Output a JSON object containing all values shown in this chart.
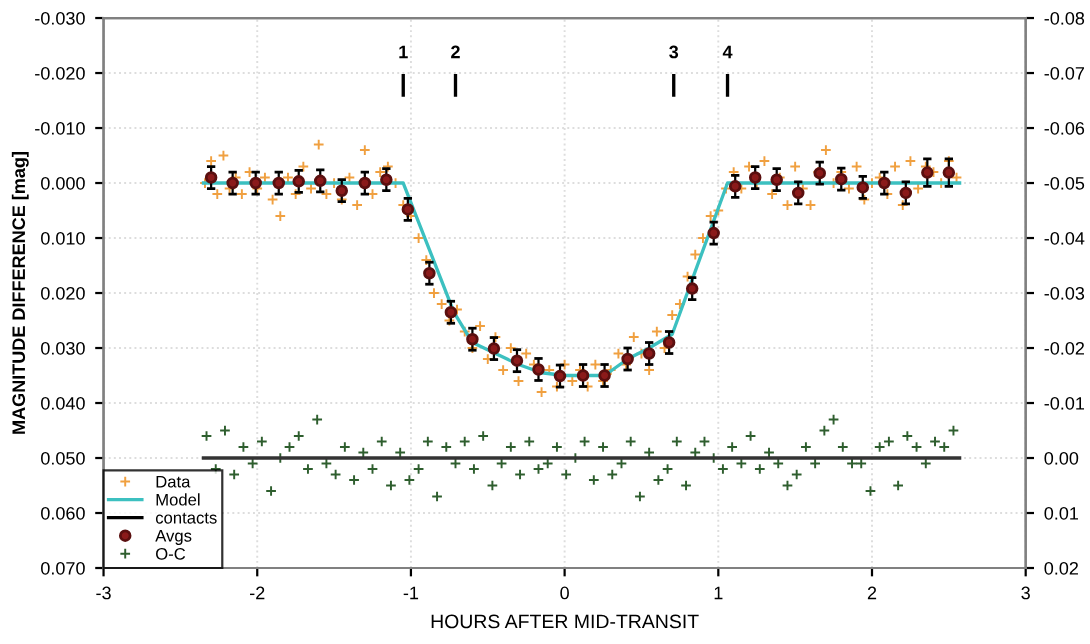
{
  "chart_data": {
    "type": "scatter",
    "xlabel": "HOURS AFTER MID-TRANSIT",
    "ylabel": "MAGNITUDE DIFFERENCE [mag]",
    "xlim": [
      -3,
      3
    ],
    "xticks": [
      -3,
      -2,
      -1,
      0,
      1,
      2,
      3
    ],
    "ylim": [
      0.07,
      -0.03
    ],
    "yticks": [
      {
        "value": -0.03,
        "label": "-0.030"
      },
      {
        "value": -0.02,
        "label": "-0.020"
      },
      {
        "value": -0.01,
        "label": "-0.010"
      },
      {
        "value": 0.0,
        "label": "0.000"
      },
      {
        "value": 0.01,
        "label": "0.010"
      },
      {
        "value": 0.02,
        "label": "0.020"
      },
      {
        "value": 0.03,
        "label": "0.030"
      },
      {
        "value": 0.04,
        "label": "0.040"
      },
      {
        "value": 0.05,
        "label": "0.050"
      },
      {
        "value": 0.06,
        "label": "0.060"
      },
      {
        "value": 0.07,
        "label": "0.070"
      }
    ],
    "y2lim": [
      0.02,
      -0.08
    ],
    "y2ticks": [
      {
        "value": -0.08,
        "label": "-0.08"
      },
      {
        "value": -0.07,
        "label": "-0.07"
      },
      {
        "value": -0.06,
        "label": "-0.06"
      },
      {
        "value": -0.05,
        "label": "-0.05"
      },
      {
        "value": -0.04,
        "label": "-0.04"
      },
      {
        "value": -0.03,
        "label": "-0.03"
      },
      {
        "value": -0.02,
        "label": "-0.02"
      },
      {
        "value": -0.01,
        "label": "-0.01"
      },
      {
        "value": 0.0,
        "label": "0.00"
      },
      {
        "value": 0.01,
        "label": "0.01"
      },
      {
        "value": 0.02,
        "label": "0.02"
      }
    ],
    "grid": true,
    "legend": "bottom left",
    "annotations": [
      "1",
      "2",
      "3",
      "4"
    ],
    "series": [
      {
        "name": "Data",
        "marker": "cross",
        "color": "#f0a040",
        "x": [
          -2.34,
          -2.3,
          -2.26,
          -2.22,
          -2.18,
          -2.14,
          -2.1,
          -2.05,
          -2.0,
          -1.95,
          -1.9,
          -1.85,
          -1.8,
          -1.75,
          -1.7,
          -1.65,
          -1.6,
          -1.55,
          -1.5,
          -1.45,
          -1.4,
          -1.35,
          -1.3,
          -1.25,
          -1.2,
          -1.15,
          -1.1,
          -1.05,
          -1.0,
          -0.95,
          -0.9,
          -0.85,
          -0.8,
          -0.75,
          -0.7,
          -0.65,
          -0.6,
          -0.55,
          -0.5,
          -0.45,
          -0.4,
          -0.35,
          -0.3,
          -0.25,
          -0.2,
          -0.15,
          -0.1,
          -0.05,
          0.0,
          0.05,
          0.1,
          0.15,
          0.2,
          0.25,
          0.3,
          0.35,
          0.4,
          0.45,
          0.5,
          0.55,
          0.6,
          0.65,
          0.7,
          0.75,
          0.8,
          0.85,
          0.9,
          0.95,
          1.0,
          1.05,
          1.1,
          1.15,
          1.2,
          1.25,
          1.3,
          1.35,
          1.4,
          1.45,
          1.5,
          1.55,
          1.6,
          1.65,
          1.7,
          1.75,
          1.8,
          1.85,
          1.9,
          1.95,
          2.0,
          2.05,
          2.1,
          2.15,
          2.2,
          2.25,
          2.3,
          2.35,
          2.4,
          2.45,
          2.5,
          2.55
        ],
        "values": [
          0.0,
          -0.004,
          0.002,
          -0.005,
          0.001,
          -0.001,
          0.002,
          -0.002,
          0.001,
          -0.001,
          0.003,
          0.006,
          -0.001,
          0.002,
          -0.003,
          0.001,
          -0.007,
          0.002,
          0.0,
          0.003,
          -0.001,
          0.004,
          -0.006,
          0.002,
          -0.002,
          -0.003,
          0.0,
          0.004,
          0.006,
          0.01,
          0.014,
          0.02,
          0.022,
          0.025,
          0.023,
          0.027,
          0.03,
          0.026,
          0.032,
          0.028,
          0.034,
          0.03,
          0.036,
          0.031,
          0.033,
          0.038,
          0.034,
          0.037,
          0.033,
          0.036,
          0.034,
          0.037,
          0.033,
          0.036,
          0.034,
          0.031,
          0.033,
          0.028,
          0.031,
          0.034,
          0.027,
          0.03,
          0.024,
          0.022,
          0.017,
          0.013,
          0.01,
          0.006,
          0.005,
          0.001,
          -0.002,
          0.001,
          -0.003,
          0.0,
          -0.004,
          0.002,
          -0.001,
          0.004,
          -0.003,
          0.001,
          0.004,
          -0.002,
          -0.006,
          0.0,
          -0.002,
          0.001,
          -0.003,
          0.003,
          0.0,
          -0.001,
          0.002,
          -0.003,
          0.004,
          -0.004,
          0.001,
          -0.003,
          -0.002,
          0.0,
          -0.004,
          -0.001
        ]
      },
      {
        "name": "Model",
        "type": "line",
        "marker": "none",
        "color": "#3cc0c0",
        "x": [
          -2.35,
          -1.05,
          -0.72,
          -0.6,
          -0.45,
          -0.3,
          -0.15,
          0.0,
          0.26,
          0.41,
          0.55,
          0.7,
          1.06,
          2.57
        ],
        "values": [
          0.0,
          0.0,
          0.0235,
          0.029,
          0.031,
          0.033,
          0.0345,
          0.035,
          0.035,
          0.032,
          0.03,
          0.0275,
          0.0,
          0.0
        ]
      },
      {
        "name": "contacts",
        "type": "line",
        "marker": "none",
        "color": "#000000",
        "x": [
          -1.05,
          -1.05,
          null,
          -0.71,
          -0.71,
          null,
          0.71,
          0.71,
          null,
          1.06,
          1.06
        ],
        "values": [
          -0.0195,
          -0.016,
          null,
          -0.0195,
          -0.016,
          null,
          -0.0195,
          -0.016,
          null,
          -0.0195,
          -0.016
        ]
      },
      {
        "name": "Avgs",
        "marker": "circle",
        "color": "#8b1a1a",
        "x": [
          -2.3,
          -2.16,
          -2.01,
          -1.86,
          -1.73,
          -1.59,
          -1.45,
          -1.3,
          -1.16,
          -1.02,
          -0.88,
          -0.74,
          -0.6,
          -0.46,
          -0.31,
          -0.17,
          -0.03,
          0.12,
          0.26,
          0.41,
          0.55,
          0.68,
          0.83,
          0.97,
          1.11,
          1.24,
          1.38,
          1.52,
          1.66,
          1.8,
          1.94,
          2.08,
          2.22,
          2.36,
          2.5
        ],
        "values": [
          -0.001,
          0.0,
          0.0,
          0.0,
          -0.0003,
          -0.0004,
          0.0014,
          0.0,
          -0.0006,
          0.0048,
          0.0164,
          0.0235,
          0.0284,
          0.0301,
          0.0323,
          0.0339,
          0.0351,
          0.035,
          0.035,
          0.032,
          0.031,
          0.029,
          0.0192,
          0.0091,
          0.0006,
          -0.001,
          -0.0006,
          0.0018,
          -0.0018,
          -0.0007,
          0.0008,
          0.0,
          0.0018,
          -0.0019,
          -0.0019
        ],
        "errors": [
          0.002,
          0.002,
          0.002,
          0.002,
          0.002,
          0.002,
          0.002,
          0.002,
          0.002,
          0.002,
          0.002,
          0.002,
          0.002,
          0.002,
          0.002,
          0.002,
          0.002,
          0.002,
          0.002,
          0.002,
          0.002,
          0.002,
          0.002,
          0.002,
          0.002,
          0.002,
          0.002,
          0.002,
          0.002,
          0.002,
          0.002,
          0.002,
          0.002,
          0.0025,
          0.0025
        ]
      },
      {
        "name": "O-C",
        "marker": "cross",
        "color": "#2e5e2e",
        "axis": "y2",
        "x": [
          -2.33,
          -2.27,
          -2.21,
          -2.15,
          -2.09,
          -2.03,
          -1.97,
          -1.91,
          -1.85,
          -1.79,
          -1.73,
          -1.67,
          -1.61,
          -1.55,
          -1.49,
          -1.43,
          -1.37,
          -1.31,
          -1.25,
          -1.19,
          -1.13,
          -1.07,
          -1.01,
          -0.95,
          -0.89,
          -0.83,
          -0.77,
          -0.71,
          -0.65,
          -0.59,
          -0.53,
          -0.47,
          -0.41,
          -0.35,
          -0.29,
          -0.23,
          -0.17,
          -0.11,
          -0.05,
          0.01,
          0.07,
          0.13,
          0.19,
          0.25,
          0.31,
          0.37,
          0.43,
          0.49,
          0.55,
          0.61,
          0.67,
          0.73,
          0.79,
          0.85,
          0.91,
          0.97,
          1.03,
          1.09,
          1.15,
          1.21,
          1.27,
          1.33,
          1.39,
          1.45,
          1.51,
          1.57,
          1.63,
          1.69,
          1.75,
          1.81,
          1.87,
          1.93,
          1.99,
          2.05,
          2.11,
          2.17,
          2.23,
          2.29,
          2.35,
          2.41,
          2.47,
          2.53
        ],
        "values": [
          -0.004,
          0.002,
          -0.005,
          0.003,
          -0.002,
          0.001,
          -0.003,
          0.006,
          0.0,
          -0.002,
          -0.004,
          0.002,
          -0.007,
          0.001,
          0.003,
          -0.002,
          0.004,
          -0.001,
          0.002,
          -0.003,
          0.005,
          -0.001,
          0.004,
          0.002,
          -0.003,
          0.007,
          -0.002,
          0.001,
          -0.003,
          0.002,
          -0.004,
          0.005,
          0.001,
          -0.002,
          0.003,
          -0.003,
          0.002,
          0.001,
          -0.002,
          0.003,
          0.0,
          -0.003,
          0.004,
          -0.002,
          0.003,
          0.001,
          -0.003,
          0.007,
          -0.001,
          0.004,
          0.002,
          -0.003,
          0.005,
          -0.001,
          -0.003,
          0.0,
          0.002,
          -0.002,
          0.001,
          -0.004,
          0.002,
          -0.001,
          0.001,
          0.005,
          0.003,
          -0.002,
          0.001,
          -0.005,
          -0.007,
          -0.002,
          0.001,
          0.001,
          0.006,
          -0.002,
          -0.003,
          0.005,
          -0.004,
          -0.002,
          0.001,
          -0.003,
          -0.002,
          -0.005
        ]
      },
      {
        "type": "line",
        "marker": "none",
        "color": "#333333",
        "axis": "y2",
        "x": [
          -2.35,
          2.57
        ],
        "values": [
          0.0,
          0.0
        ]
      }
    ]
  }
}
